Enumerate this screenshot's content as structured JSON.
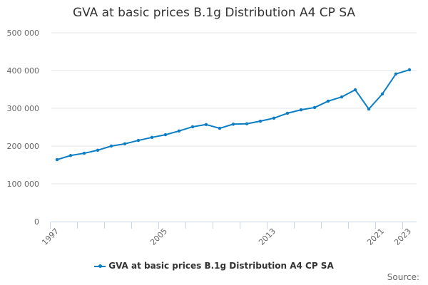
{
  "chart_data": {
    "type": "line",
    "title": "GVA at basic prices B.1g Distribution A4 CP SA",
    "x": [
      1997,
      1998,
      1999,
      2000,
      2001,
      2002,
      2003,
      2004,
      2005,
      2006,
      2007,
      2008,
      2009,
      2010,
      2011,
      2012,
      2013,
      2014,
      2015,
      2016,
      2017,
      2018,
      2019,
      2020,
      2021,
      2022,
      2023
    ],
    "series": [
      {
        "name": "GVA at basic prices B.1g Distribution A4 CP SA",
        "values": [
          164000,
          175000,
          181000,
          189000,
          200000,
          206000,
          215000,
          223000,
          230000,
          240000,
          251000,
          257000,
          247000,
          258000,
          259000,
          266000,
          274000,
          287000,
          296000,
          302000,
          319000,
          330000,
          349000,
          298000,
          338000,
          391000,
          402000
        ]
      }
    ],
    "x_tick_labels": [
      "1997",
      "2005",
      "2013",
      "2021",
      "2023"
    ],
    "y_tick_labels": [
      "0",
      "100 000",
      "200 000",
      "300 000",
      "400 000",
      "500 000"
    ],
    "ylim": [
      0,
      500000
    ],
    "grid": true,
    "legend": "bottom",
    "color": "#0b7dc4"
  },
  "source_label": "Source:"
}
